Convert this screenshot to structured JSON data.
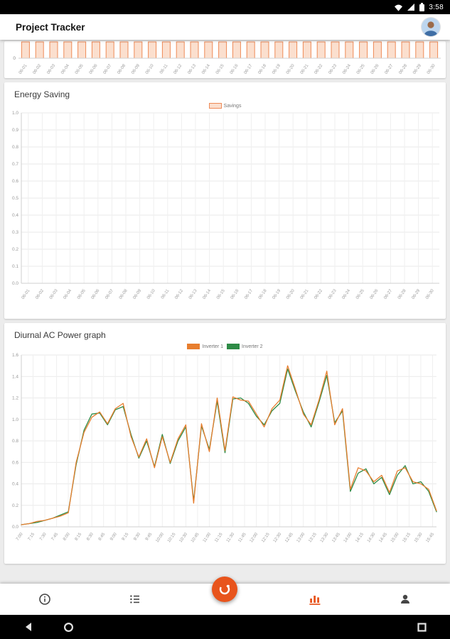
{
  "ui_colors": {
    "accent": "#E8541C",
    "bar_fill": "#FBDFCE",
    "bar_border": "#EE8A57"
  },
  "status_bar": {
    "time": "3:58",
    "icons": [
      "wifi",
      "cell-signal",
      "battery"
    ]
  },
  "app_bar": {
    "title": "Project Tracker"
  },
  "bottom_nav": {
    "items": [
      "info",
      "task-list",
      "capture-fab",
      "charts",
      "profile"
    ],
    "active_item": "charts"
  },
  "android_nav": {
    "buttons": [
      "back",
      "home",
      "recents"
    ]
  },
  "chart_data": [
    {
      "id": "daily-generation",
      "type": "bar",
      "title": "",
      "note": "top of chart clipped above viewport; only bar bottoms, 0 tick and date labels visible",
      "categories": [
        "06-01",
        "06-02",
        "06-03",
        "06-04",
        "06-05",
        "06-06",
        "06-07",
        "06-08",
        "06-09",
        "06-10",
        "06-11",
        "06-12",
        "06-13",
        "06-14",
        "06-15",
        "06-16",
        "06-17",
        "06-18",
        "06-19",
        "06-20",
        "06-21",
        "06-22",
        "06-23",
        "06-24",
        "06-25",
        "06-26",
        "06-27",
        "06-28",
        "06-29",
        "06-30"
      ],
      "series": [
        {
          "name": "",
          "fill": "#FBDFCE",
          "border": "#EE8A57",
          "values": [
            1,
            1,
            1,
            1,
            1,
            1,
            1,
            1,
            1,
            1,
            1,
            1,
            1,
            1,
            1,
            1,
            1,
            1,
            1,
            1,
            1,
            1,
            1,
            1,
            1,
            1,
            1,
            1,
            1,
            1
          ]
        }
      ],
      "y_visible_tick": "0"
    },
    {
      "id": "energy-saving",
      "type": "bar",
      "title": "Energy Saving",
      "categories": [
        "06-01",
        "06-02",
        "06-03",
        "06-04",
        "06-05",
        "06-06",
        "06-07",
        "06-08",
        "06-09",
        "06-10",
        "06-11",
        "06-12",
        "06-13",
        "06-14",
        "06-15",
        "06-16",
        "06-17",
        "06-18",
        "06-19",
        "06-20",
        "06-21",
        "06-22",
        "06-23",
        "06-24",
        "06-25",
        "06-26",
        "06-27",
        "06-28",
        "06-29",
        "06-30"
      ],
      "series": [
        {
          "name": "Savings",
          "fill": "#FBDFCE",
          "border": "#EE8A57",
          "values": []
        }
      ],
      "ylim": [
        0,
        1.0
      ],
      "ytick_step": 0.1,
      "grid": true,
      "legend_position": "top"
    },
    {
      "id": "diurnal-ac-power",
      "type": "line",
      "title": "Diurnal AC Power graph",
      "x_start_min": 420,
      "x_step_min": 10,
      "x_end_min": 950,
      "x_tick_step_min": 15,
      "x_ticks": [
        "7:00",
        "7:15",
        "7:30",
        "7:45",
        "8:00",
        "8:15",
        "8:30",
        "8:45",
        "9:00",
        "9:15",
        "9:30",
        "9:45",
        "10:00",
        "10:15",
        "10:30",
        "10:45",
        "11:00",
        "11:15",
        "11:30",
        "11:45",
        "12:00",
        "12:15",
        "12:30",
        "12:45",
        "13:00",
        "13:15",
        "13:30",
        "13:45",
        "14:00",
        "14:15",
        "14:30",
        "14:45",
        "15:00",
        "15:15",
        "15:30",
        "15:45"
      ],
      "ylim": [
        0,
        1.6
      ],
      "ytick_step": 0.2,
      "grid": true,
      "legend_position": "top",
      "series": [
        {
          "name": "Inverter 1",
          "color": "#E87E2E",
          "values": [
            0.02,
            0.03,
            0.05,
            0.06,
            0.08,
            0.1,
            0.13,
            0.6,
            0.88,
            1.02,
            1.07,
            0.96,
            1.1,
            1.15,
            0.84,
            0.65,
            0.82,
            0.55,
            0.84,
            0.6,
            0.82,
            0.95,
            0.22,
            0.96,
            0.7,
            1.2,
            0.71,
            1.21,
            1.18,
            1.17,
            1.05,
            0.93,
            1.1,
            1.18,
            1.5,
            1.28,
            1.05,
            0.95,
            1.18,
            1.45,
            0.95,
            1.1,
            0.35,
            0.55,
            0.52,
            0.42,
            0.48,
            0.32,
            0.52,
            0.55,
            0.42,
            0.4,
            0.35,
            0.15
          ]
        },
        {
          "name": "Inverter 2",
          "color": "#2E8B46",
          "values": [
            0.02,
            0.03,
            0.04,
            0.06,
            0.08,
            0.11,
            0.14,
            0.58,
            0.9,
            1.05,
            1.06,
            0.95,
            1.09,
            1.12,
            0.86,
            0.64,
            0.8,
            0.56,
            0.86,
            0.59,
            0.8,
            0.93,
            0.24,
            0.94,
            0.72,
            1.17,
            0.69,
            1.19,
            1.2,
            1.15,
            1.03,
            0.95,
            1.08,
            1.15,
            1.47,
            1.26,
            1.07,
            0.93,
            1.16,
            1.41,
            0.97,
            1.08,
            0.33,
            0.5,
            0.54,
            0.4,
            0.46,
            0.3,
            0.48,
            0.57,
            0.4,
            0.42,
            0.33,
            0.14
          ]
        }
      ]
    }
  ]
}
